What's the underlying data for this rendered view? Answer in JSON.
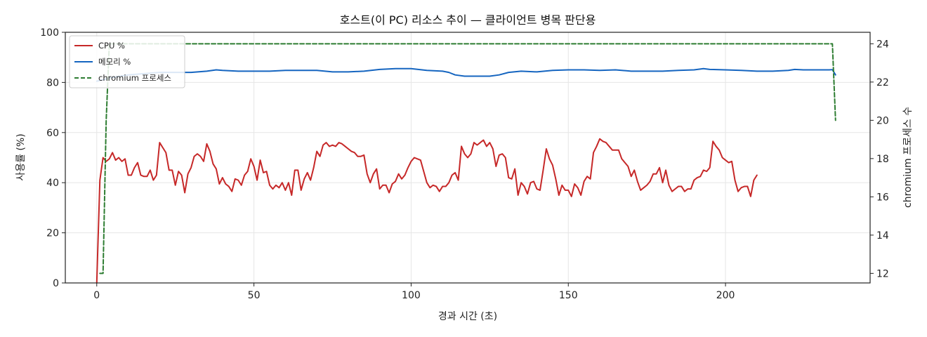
{
  "chart_data": {
    "type": "line",
    "title": "호스트(이 PC) 리소스 추이 — 클라이언트 병목 판단용",
    "xlabel": "경과 시간 (초)",
    "ylabel_left": "사용률 (%)",
    "ylabel_right": "chromium 프로세스 수",
    "xlim": [
      -10,
      246
    ],
    "ylim_left": [
      0,
      100
    ],
    "ylim_right": [
      11.5,
      24.6
    ],
    "x_ticks": [
      0,
      50,
      100,
      150,
      200
    ],
    "y_ticks_left": [
      0,
      20,
      40,
      60,
      80,
      100
    ],
    "y_ticks_right": [
      12,
      14,
      16,
      18,
      20,
      22,
      24
    ],
    "grid": true,
    "legend_position": "top-left",
    "series": [
      {
        "name": "CPU %",
        "axis": "left",
        "color": "#c62828",
        "style": "solid",
        "points": [
          [
            0,
            0
          ],
          [
            1,
            41
          ],
          [
            2,
            50
          ],
          [
            3,
            48.5
          ],
          [
            4,
            49.5
          ],
          [
            5,
            52
          ],
          [
            6,
            49
          ],
          [
            7,
            50
          ],
          [
            8,
            48.5
          ],
          [
            9,
            49.5
          ],
          [
            10,
            43
          ],
          [
            11,
            43
          ],
          [
            12,
            46
          ],
          [
            13,
            48
          ],
          [
            14,
            43
          ],
          [
            15,
            42.5
          ],
          [
            16,
            42.5
          ],
          [
            17,
            45
          ],
          [
            18,
            41
          ],
          [
            19,
            43
          ],
          [
            20,
            56
          ],
          [
            21,
            54
          ],
          [
            22,
            52
          ],
          [
            23,
            45
          ],
          [
            24,
            45
          ],
          [
            25,
            39
          ],
          [
            26,
            44.5
          ],
          [
            27,
            43
          ],
          [
            28,
            36
          ],
          [
            29,
            43.5
          ],
          [
            30,
            46
          ],
          [
            31,
            50.5
          ],
          [
            32,
            51.5
          ],
          [
            33,
            50.5
          ],
          [
            34,
            48.5
          ],
          [
            35,
            55.5
          ],
          [
            36,
            52.5
          ],
          [
            37,
            47.5
          ],
          [
            38,
            45.5
          ],
          [
            39,
            39.5
          ],
          [
            40,
            42
          ],
          [
            41,
            39.5
          ],
          [
            42,
            38.5
          ],
          [
            43,
            36.5
          ],
          [
            44,
            41.5
          ],
          [
            45,
            41
          ],
          [
            46,
            39
          ],
          [
            47,
            43
          ],
          [
            48,
            44.5
          ],
          [
            49,
            49.5
          ],
          [
            50,
            46.5
          ],
          [
            51,
            41
          ],
          [
            52,
            49
          ],
          [
            53,
            44
          ],
          [
            54,
            44.5
          ],
          [
            55,
            39
          ],
          [
            56,
            37.5
          ],
          [
            57,
            39
          ],
          [
            58,
            38
          ],
          [
            59,
            40
          ],
          [
            60,
            37
          ],
          [
            61,
            40
          ],
          [
            62,
            35
          ],
          [
            63,
            45
          ],
          [
            64,
            45
          ],
          [
            65,
            37
          ],
          [
            66,
            41.5
          ],
          [
            67,
            44
          ],
          [
            68,
            41
          ],
          [
            69,
            46
          ],
          [
            70,
            52.5
          ],
          [
            71,
            50.5
          ],
          [
            72,
            55
          ],
          [
            73,
            56
          ],
          [
            74,
            54.5
          ],
          [
            75,
            55
          ],
          [
            76,
            54.5
          ],
          [
            77,
            56
          ],
          [
            78,
            55.5
          ],
          [
            79,
            54.5
          ],
          [
            80,
            53.5
          ],
          [
            81,
            52.5
          ],
          [
            82,
            52
          ],
          [
            83,
            50.5
          ],
          [
            84,
            50.5
          ],
          [
            85,
            51
          ],
          [
            86,
            43.5
          ],
          [
            87,
            40
          ],
          [
            88,
            43.5
          ],
          [
            89,
            45.5
          ],
          [
            90,
            37.5
          ],
          [
            91,
            39
          ],
          [
            92,
            39
          ],
          [
            93,
            36
          ],
          [
            94,
            39.5
          ],
          [
            95,
            40.5
          ],
          [
            96,
            43.5
          ],
          [
            97,
            41.5
          ],
          [
            98,
            43
          ],
          [
            99,
            46
          ],
          [
            100,
            48.5
          ],
          [
            101,
            50
          ],
          [
            102,
            49.5
          ],
          [
            103,
            49
          ],
          [
            104,
            44.5
          ],
          [
            105,
            40
          ],
          [
            106,
            38
          ],
          [
            107,
            39
          ],
          [
            108,
            38.5
          ],
          [
            109,
            36.5
          ],
          [
            110,
            38.5
          ],
          [
            111,
            38.5
          ],
          [
            112,
            40
          ],
          [
            113,
            43
          ],
          [
            114,
            44
          ],
          [
            115,
            41
          ],
          [
            116,
            54.5
          ],
          [
            117,
            51.5
          ],
          [
            118,
            50
          ],
          [
            119,
            51.5
          ],
          [
            120,
            56
          ],
          [
            121,
            55
          ],
          [
            122,
            56
          ],
          [
            123,
            57
          ],
          [
            124,
            54.5
          ],
          [
            125,
            56
          ],
          [
            126,
            53.5
          ],
          [
            127,
            46.5
          ],
          [
            128,
            51
          ],
          [
            129,
            51.5
          ],
          [
            130,
            50
          ],
          [
            131,
            42
          ],
          [
            132,
            41.5
          ],
          [
            133,
            45.5
          ],
          [
            134,
            35
          ],
          [
            135,
            40
          ],
          [
            136,
            38.5
          ],
          [
            137,
            35.5
          ],
          [
            138,
            40
          ],
          [
            139,
            40.5
          ],
          [
            140,
            37.5
          ],
          [
            141,
            37
          ],
          [
            142,
            45
          ],
          [
            143,
            53.5
          ],
          [
            144,
            49.5
          ],
          [
            145,
            47
          ],
          [
            146,
            41.5
          ],
          [
            147,
            35
          ],
          [
            148,
            39
          ],
          [
            149,
            37
          ],
          [
            150,
            37
          ],
          [
            151,
            34.5
          ],
          [
            152,
            39.5
          ],
          [
            153,
            38
          ],
          [
            154,
            35
          ],
          [
            155,
            40.5
          ],
          [
            156,
            42.5
          ],
          [
            157,
            41.5
          ],
          [
            158,
            52
          ],
          [
            159,
            54.5
          ],
          [
            160,
            57.5
          ],
          [
            161,
            56.5
          ],
          [
            162,
            56
          ],
          [
            163,
            54.5
          ],
          [
            164,
            53
          ],
          [
            165,
            53
          ],
          [
            166,
            53
          ],
          [
            167,
            49.5
          ],
          [
            168,
            48
          ],
          [
            169,
            46.5
          ],
          [
            170,
            42.5
          ],
          [
            171,
            45
          ],
          [
            172,
            40.5
          ],
          [
            173,
            37
          ],
          [
            174,
            38
          ],
          [
            175,
            39
          ],
          [
            176,
            40.5
          ],
          [
            177,
            43.5
          ],
          [
            178,
            43.5
          ],
          [
            179,
            46
          ],
          [
            180,
            40
          ],
          [
            181,
            45
          ],
          [
            182,
            39
          ],
          [
            183,
            36.5
          ],
          [
            184,
            37.5
          ],
          [
            185,
            38.5
          ],
          [
            186,
            38.5
          ],
          [
            187,
            36.5
          ],
          [
            188,
            37.5
          ],
          [
            189,
            37.5
          ],
          [
            190,
            41
          ],
          [
            191,
            42
          ],
          [
            192,
            42.5
          ],
          [
            193,
            45
          ],
          [
            194,
            44.5
          ],
          [
            195,
            46
          ],
          [
            196,
            56.5
          ],
          [
            197,
            54.5
          ],
          [
            198,
            53
          ],
          [
            199,
            50
          ],
          [
            200,
            49
          ],
          [
            201,
            48
          ],
          [
            202,
            48.5
          ],
          [
            203,
            41
          ],
          [
            204,
            36.5
          ],
          [
            205,
            38
          ],
          [
            206,
            38.5
          ],
          [
            207,
            38.5
          ],
          [
            208,
            34.5
          ],
          [
            209,
            41
          ],
          [
            210,
            43
          ]
        ]
      },
      {
        "name": "메모리 %",
        "axis": "left",
        "color": "#1565c0",
        "style": "solid",
        "points": [
          [
            0,
            80.5
          ],
          [
            5,
            82
          ],
          [
            10,
            83
          ],
          [
            15,
            83.5
          ],
          [
            20,
            84
          ],
          [
            25,
            84
          ],
          [
            30,
            84
          ],
          [
            35,
            84.5
          ],
          [
            38,
            85
          ],
          [
            40,
            84.8
          ],
          [
            45,
            84.5
          ],
          [
            50,
            84.5
          ],
          [
            55,
            84.5
          ],
          [
            60,
            84.8
          ],
          [
            65,
            84.8
          ],
          [
            70,
            84.8
          ],
          [
            75,
            84.2
          ],
          [
            80,
            84.2
          ],
          [
            85,
            84.5
          ],
          [
            90,
            85.2
          ],
          [
            95,
            85.5
          ],
          [
            100,
            85.5
          ],
          [
            105,
            84.8
          ],
          [
            110,
            84.5
          ],
          [
            112,
            84
          ],
          [
            114,
            83
          ],
          [
            117,
            82.5
          ],
          [
            120,
            82.5
          ],
          [
            125,
            82.5
          ],
          [
            128,
            83
          ],
          [
            131,
            84
          ],
          [
            135,
            84.5
          ],
          [
            140,
            84.2
          ],
          [
            145,
            84.8
          ],
          [
            150,
            85
          ],
          [
            155,
            85
          ],
          [
            160,
            84.8
          ],
          [
            165,
            85
          ],
          [
            170,
            84.5
          ],
          [
            175,
            84.5
          ],
          [
            180,
            84.5
          ],
          [
            185,
            84.8
          ],
          [
            190,
            85
          ],
          [
            193,
            85.5
          ],
          [
            195,
            85.2
          ],
          [
            200,
            85
          ],
          [
            205,
            84.8
          ],
          [
            210,
            84.5
          ],
          [
            215,
            84.5
          ],
          [
            220,
            84.8
          ],
          [
            222,
            85.2
          ],
          [
            225,
            85
          ],
          [
            230,
            85
          ],
          [
            233,
            85
          ],
          [
            234,
            85.1
          ],
          [
            235,
            83
          ]
        ]
      },
      {
        "name": "chromium 프로세스",
        "axis": "right",
        "color": "#2e7d32",
        "style": "dashed",
        "points": [
          [
            1,
            12
          ],
          [
            2,
            12
          ],
          [
            3,
            20
          ],
          [
            4,
            24
          ],
          [
            50,
            24
          ],
          [
            100,
            24
          ],
          [
            150,
            24
          ],
          [
            200,
            24
          ],
          [
            232,
            24
          ],
          [
            234,
            24
          ],
          [
            235,
            20
          ]
        ]
      }
    ]
  }
}
